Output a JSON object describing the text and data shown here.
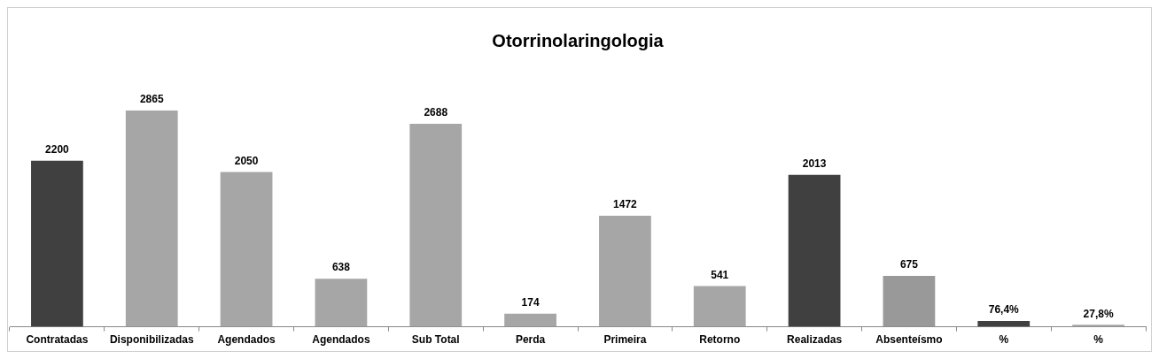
{
  "chart_data": {
    "type": "bar",
    "title": "Otorrinolaringologia",
    "categories": [
      "Contratadas",
      "Disponibilizadas",
      "Agendados",
      "Agendados",
      "Sub Total",
      "Perda",
      "Primeira",
      "Retorno",
      "Realizadas",
      "Absenteísmo",
      "%",
      "%"
    ],
    "values": [
      2200,
      2865,
      2050,
      638,
      2688,
      174,
      1472,
      541,
      2013,
      675,
      76.4,
      27.8
    ],
    "value_labels": [
      "2200",
      "2865",
      "2050",
      "638",
      "2688",
      "174",
      "1472",
      "541",
      "2013",
      "675",
      "76,4%",
      "27,8%"
    ],
    "colors": [
      "#404040",
      "#a6a6a6",
      "#a6a6a6",
      "#a6a6a6",
      "#a6a6a6",
      "#a6a6a6",
      "#a6a6a6",
      "#a6a6a6",
      "#404040",
      "#999999",
      "#404040",
      "#a6a6a6"
    ],
    "grid": false,
    "legend": false
  }
}
